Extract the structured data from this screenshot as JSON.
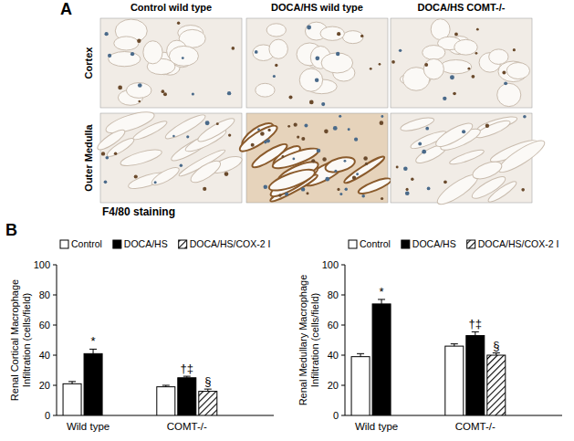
{
  "panel_a": {
    "letter": "A",
    "columns": [
      "Control wild type",
      "DOCA/HS wild type",
      "DOCA/HS COMT-/-"
    ],
    "rows": [
      "Cortex",
      "Outer Medulla"
    ],
    "caption": "F4/80 staining"
  },
  "panel_b": {
    "letter": "B"
  },
  "chart_data": [
    {
      "type": "bar",
      "ylabel": "Renal Cortical Macrophage Infiltration (cells/field)",
      "categories": [
        "Wild type",
        "COMT-/-"
      ],
      "series": [
        {
          "name": "Control",
          "color": "#ffffff",
          "values": [
            21,
            19
          ],
          "errors": [
            1.5,
            1
          ]
        },
        {
          "name": "DOCA/HS",
          "color": "#000000",
          "values": [
            41,
            25
          ],
          "errors": [
            3,
            1
          ]
        },
        {
          "name": "DOCA/HS/COX-2 I",
          "color": "#000000",
          "line_style": "hatched",
          "values": [
            null,
            16
          ],
          "errors": [
            null,
            1.5
          ]
        }
      ],
      "annotations": [
        {
          "text": "*",
          "series": 1,
          "category": 0
        },
        {
          "text": "†‡",
          "series": 1,
          "category": 1
        },
        {
          "text": "§",
          "series": 2,
          "category": 1
        }
      ],
      "ylim": [
        0,
        100
      ],
      "yticks": [
        0,
        20,
        40,
        60,
        80,
        100
      ],
      "legend": "top"
    },
    {
      "type": "bar",
      "ylabel": "Renal Medullary Macrophage Infiltration (cells/field)",
      "categories": [
        "Wild type",
        "COMT-/-"
      ],
      "series": [
        {
          "name": "Control",
          "color": "#ffffff",
          "values": [
            39,
            46
          ],
          "errors": [
            2,
            1.5
          ]
        },
        {
          "name": "DOCA/HS",
          "color": "#000000",
          "values": [
            74,
            53
          ],
          "errors": [
            3,
            2.5
          ]
        },
        {
          "name": "DOCA/HS/COX-2 I",
          "color": "#000000",
          "line_style": "hatched",
          "values": [
            null,
            40
          ],
          "errors": [
            null,
            1.5
          ]
        }
      ],
      "annotations": [
        {
          "text": "*",
          "series": 1,
          "category": 0
        },
        {
          "text": "†‡",
          "series": 1,
          "category": 1
        },
        {
          "text": "§",
          "series": 2,
          "category": 1
        }
      ],
      "ylim": [
        0,
        100
      ],
      "yticks": [
        0,
        20,
        40,
        60,
        80,
        100
      ],
      "legend": "top"
    }
  ]
}
